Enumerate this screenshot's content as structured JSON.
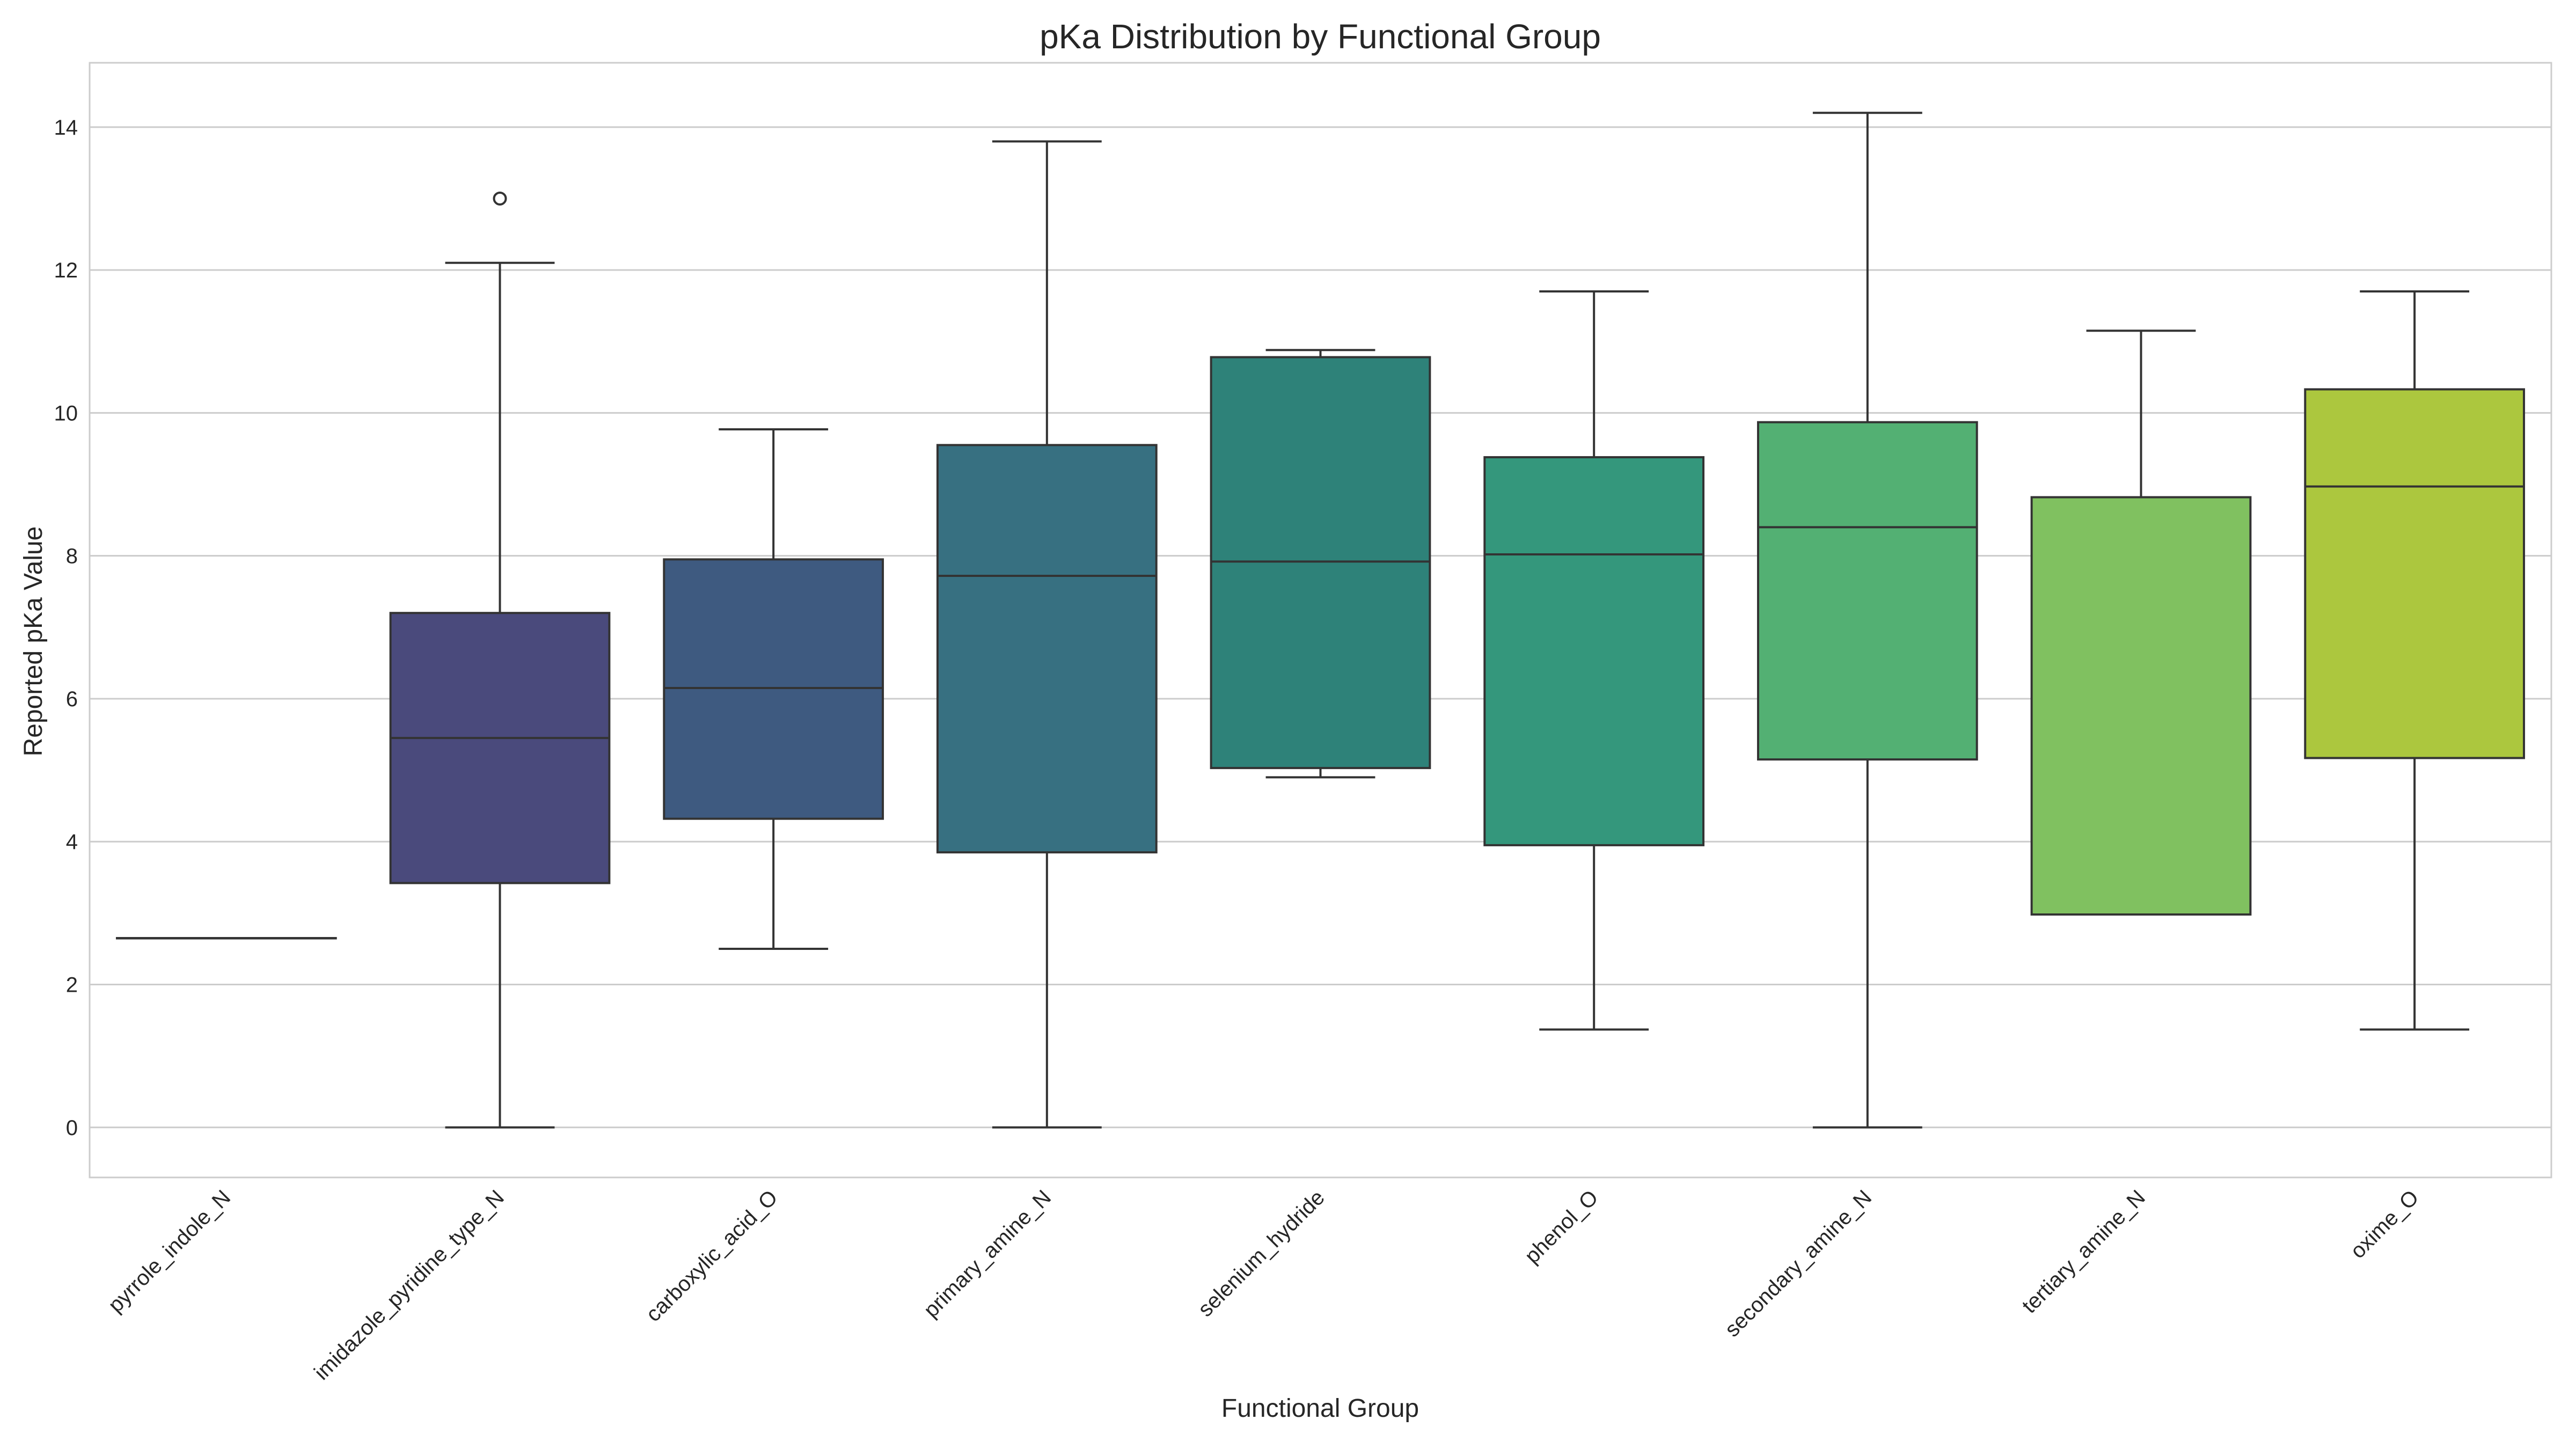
{
  "chart_data": {
    "type": "box",
    "title": "pKa Distribution by Functional Group",
    "xlabel": "Functional Group",
    "ylabel": "Reported pKa Value",
    "ylim": [
      -0.7,
      14.9
    ],
    "yticks": [
      0,
      2,
      4,
      6,
      8,
      10,
      12,
      14
    ],
    "grid": true,
    "categories": [
      "pyrrole_indole_N",
      "imidazole_pyridine_type_N",
      "carboxylic_acid_O",
      "primary_amine_N",
      "selenium_hydride",
      "phenol_O",
      "secondary_amine_N",
      "tertiary_amine_N",
      "oxime_O"
    ],
    "boxes": [
      {
        "name": "pyrrole_indole_N",
        "min": 2.65,
        "q1": 2.65,
        "median": 2.65,
        "q3": 2.65,
        "max": 2.65,
        "outliers": [],
        "color": "#440154"
      },
      {
        "name": "imidazole_pyridine_type_N",
        "min": 0.0,
        "q1": 3.42,
        "median": 5.45,
        "q3": 7.2,
        "max": 12.1,
        "outliers": [
          13.0
        ],
        "color": "#4a4a7c"
      },
      {
        "name": "carboxylic_acid_O",
        "min": 2.5,
        "q1": 4.32,
        "median": 6.15,
        "q3": 7.95,
        "max": 9.77,
        "outliers": [],
        "color": "#3e5a80"
      },
      {
        "name": "primary_amine_N",
        "min": 0.0,
        "q1": 3.85,
        "median": 7.72,
        "q3": 9.55,
        "max": 13.8,
        "outliers": [],
        "color": "#377081"
      },
      {
        "name": "selenium_hydride",
        "min": 4.9,
        "q1": 5.03,
        "median": 7.92,
        "q3": 10.78,
        "max": 10.88,
        "outliers": [],
        "color": "#2e8279"
      },
      {
        "name": "phenol_O",
        "min": 1.37,
        "q1": 3.95,
        "median": 8.02,
        "q3": 9.38,
        "max": 11.7,
        "outliers": [],
        "color": "#34977c"
      },
      {
        "name": "secondary_amine_N",
        "min": 0.0,
        "q1": 5.15,
        "median": 8.4,
        "q3": 9.87,
        "max": 14.2,
        "outliers": [],
        "color": "#53b073"
      },
      {
        "name": "tertiary_amine_N",
        "min": 2.98,
        "q1": 2.98,
        "median": 8.82,
        "q3": 8.82,
        "max": 11.15,
        "outliers": [],
        "color": "#80c160"
      },
      {
        "name": "oxime_O",
        "min": 1.37,
        "q1": 5.17,
        "median": 8.97,
        "q3": 10.33,
        "max": 11.7,
        "outliers": [],
        "color": "#acc73e"
      }
    ]
  }
}
